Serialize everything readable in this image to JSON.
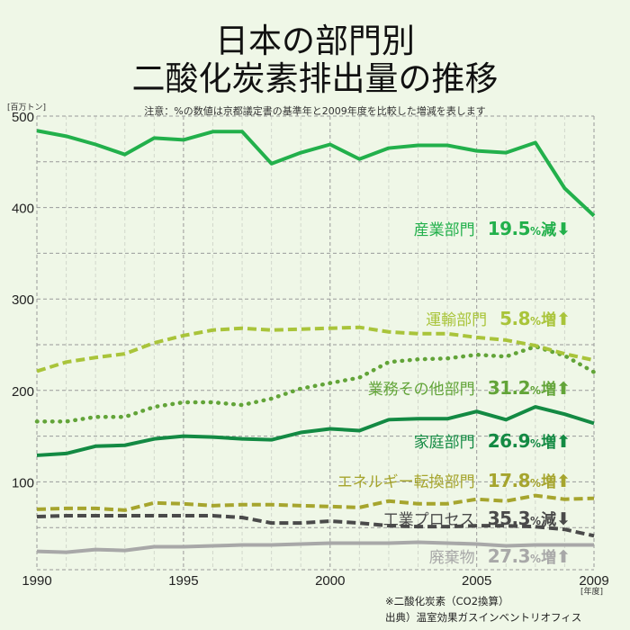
{
  "title": {
    "line1": "日本の部門別",
    "line2": "二酸化炭素排出量の推移"
  },
  "note": "注意：%の数値は京都議定書の基準年と2009年度を比較した増減を表します",
  "footnotes": {
    "line1": "※二酸化炭素（CO2換算）",
    "line2": "出典）温室効果ガスインベントリオフィス"
  },
  "chart_data": {
    "type": "line",
    "title": "日本の部門別二酸化炭素排出量の推移",
    "ylabel": "[百万トン]",
    "xlabel": "[年度]",
    "ylim": [
      0,
      500
    ],
    "xlim": [
      1990,
      2009
    ],
    "yticks": [
      "100",
      "200",
      "300",
      "400",
      "500"
    ],
    "xticks": [
      "1990",
      "1995",
      "2000",
      "2005",
      "2009"
    ],
    "grid": true,
    "x": [
      1990,
      1991,
      1992,
      1993,
      1994,
      1995,
      1996,
      1997,
      1998,
      1999,
      2000,
      2001,
      2002,
      2003,
      2004,
      2005,
      2006,
      2007,
      2008,
      2009
    ],
    "series": [
      {
        "name": "産業部門",
        "change": "19.5",
        "pct": "%",
        "dir": "減",
        "arrow": "⬇",
        "color": "#22b04b",
        "style": "solid",
        "values": [
          484,
          478,
          469,
          458,
          476,
          474,
          483,
          483,
          448,
          460,
          469,
          453,
          465,
          468,
          468,
          462,
          460,
          471,
          421,
          391
        ]
      },
      {
        "name": "運輸部門",
        "change": "5.8",
        "pct": "%",
        "dir": "増",
        "arrow": "⬆",
        "color": "#a9c43a",
        "style": "dashed",
        "values": [
          221,
          231,
          236,
          240,
          252,
          260,
          266,
          268,
          266,
          267,
          268,
          269,
          264,
          262,
          262,
          258,
          255,
          249,
          240,
          233
        ]
      },
      {
        "name": "業務その他部門",
        "change": "31.2",
        "pct": "%",
        "dir": "増",
        "arrow": "⬆",
        "color": "#62a438",
        "style": "dotted",
        "values": [
          166,
          166,
          171,
          171,
          182,
          187,
          187,
          184,
          191,
          202,
          208,
          214,
          231,
          234,
          235,
          239,
          237,
          248,
          238,
          220
        ]
      },
      {
        "name": "家庭部門",
        "change": "26.9",
        "pct": "%",
        "dir": "増",
        "arrow": "⬆",
        "color": "#138a43",
        "style": "solid",
        "values": [
          129,
          131,
          139,
          140,
          147,
          150,
          149,
          147,
          146,
          154,
          158,
          156,
          168,
          169,
          169,
          177,
          168,
          182,
          174,
          164
        ]
      },
      {
        "name": "エネルギー転換部門",
        "change": "17.8",
        "pct": "%",
        "dir": "増",
        "arrow": "⬆",
        "color": "#a6a52e",
        "style": "dashed",
        "values": [
          70,
          71,
          71,
          69,
          77,
          76,
          74,
          75,
          75,
          74,
          73,
          72,
          79,
          76,
          76,
          81,
          79,
          85,
          81,
          82
        ]
      },
      {
        "name": "工業プロセス",
        "change": "35.3",
        "pct": "%",
        "dir": "減",
        "arrow": "⬇",
        "color": "#4a4a4a",
        "style": "dashed",
        "values": [
          62,
          63,
          63,
          63,
          63,
          63,
          63,
          61,
          55,
          55,
          57,
          55,
          52,
          51,
          51,
          52,
          52,
          51,
          48,
          41
        ]
      },
      {
        "name": "廃棄物",
        "change": "27.3",
        "pct": "%",
        "dir": "増",
        "arrow": "⬆",
        "color": "#a8a8a8",
        "style": "solid",
        "values": [
          24,
          23,
          26,
          25,
          29,
          29,
          30,
          31,
          31,
          32,
          33,
          33,
          33,
          34,
          33,
          32,
          30,
          31,
          31,
          31
        ]
      }
    ]
  }
}
